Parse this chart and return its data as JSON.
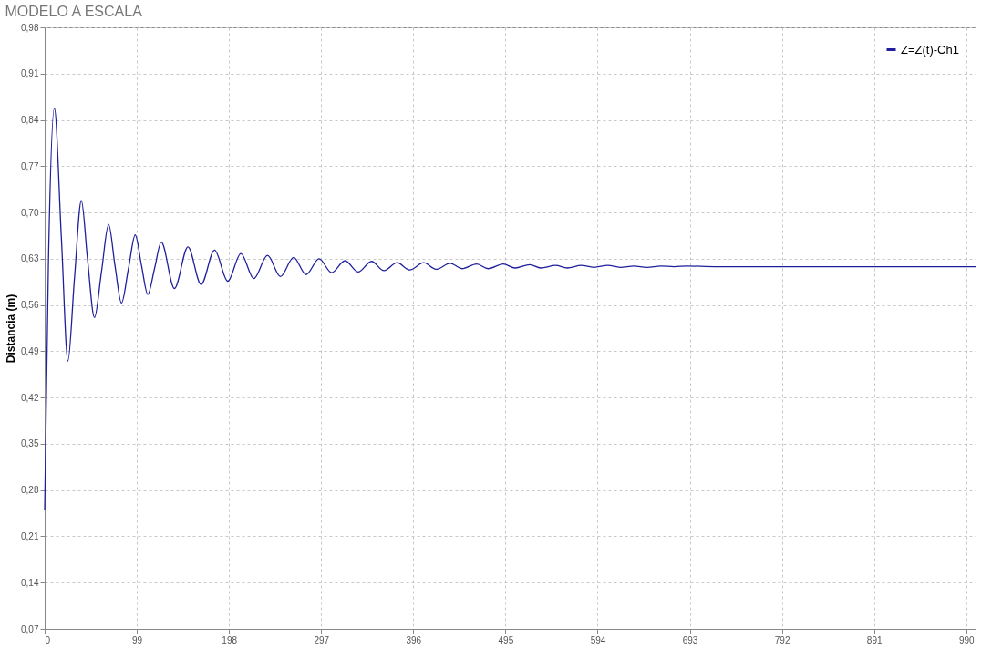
{
  "chart_data": {
    "type": "line",
    "title": "MODELO A ESCALA",
    "ylabel": "Distancia (m)",
    "x": [
      0,
      4,
      10.4,
      18,
      25,
      32,
      39.4,
      46,
      53.5,
      61,
      68.7,
      75.5,
      82.5,
      90,
      97.3,
      104,
      110.8,
      118,
      125.3,
      139.4,
      153.9,
      168,
      182.5,
      196.7,
      210.8,
      224.6,
      239.4,
      253.2,
      267.4,
      280.8,
      294.8,
      308.2,
      322.6,
      336.7,
      351.1,
      364.5,
      378.6,
      392.1,
      407.1,
      420.5,
      435.6,
      448.4,
      464.1,
      476.5,
      492.6,
      505.4,
      521.1,
      532.9,
      549,
      561.4,
      576.5,
      589.9,
      605,
      618.4,
      633,
      647,
      662,
      676,
      690,
      720,
      760,
      800,
      900,
      1000
    ],
    "series": [
      {
        "name": "Z=Z(t)-Ch1",
        "color": "#1f1f9c",
        "values": [
          0.25,
          0.62,
          0.858,
          0.66,
          0.475,
          0.6,
          0.718,
          0.63,
          0.541,
          0.61,
          0.682,
          0.62,
          0.563,
          0.615,
          0.666,
          0.62,
          0.576,
          0.615,
          0.655,
          0.585,
          0.648,
          0.591,
          0.643,
          0.596,
          0.638,
          0.6,
          0.635,
          0.603,
          0.632,
          0.606,
          0.63,
          0.609,
          0.627,
          0.61,
          0.626,
          0.612,
          0.624,
          0.613,
          0.624,
          0.614,
          0.623,
          0.615,
          0.622,
          0.615,
          0.622,
          0.616,
          0.621,
          0.616,
          0.62,
          0.616,
          0.62,
          0.617,
          0.62,
          0.617,
          0.619,
          0.617,
          0.619,
          0.618,
          0.619,
          0.618,
          0.618,
          0.618,
          0.618,
          0.618
        ]
      }
    ],
    "xlim": [
      0,
      1000
    ],
    "xticks": [
      0,
      99,
      198,
      297,
      396,
      495,
      594,
      693,
      792,
      891,
      990
    ],
    "ylim": [
      0.07,
      0.98
    ],
    "yticks": [
      {
        "value": 0.07,
        "label": "0,07"
      },
      {
        "value": 0.14,
        "label": "0,14"
      },
      {
        "value": 0.21,
        "label": "0,21"
      },
      {
        "value": 0.28,
        "label": "0,28"
      },
      {
        "value": 0.35,
        "label": "0,35"
      },
      {
        "value": 0.42,
        "label": "0,42"
      },
      {
        "value": 0.49,
        "label": "0,49"
      },
      {
        "value": 0.56,
        "label": "0,56"
      },
      {
        "value": 0.63,
        "label": "0,63"
      },
      {
        "value": 0.7,
        "label": "0,70"
      },
      {
        "value": 0.77,
        "label": "0,77"
      },
      {
        "value": 0.84,
        "label": "0,84"
      },
      {
        "value": 0.91,
        "label": "0,91"
      },
      {
        "value": 0.98,
        "label": "0,98"
      }
    ],
    "grid": true,
    "legend": "top right",
    "marker": "none",
    "line_style": "solid"
  }
}
